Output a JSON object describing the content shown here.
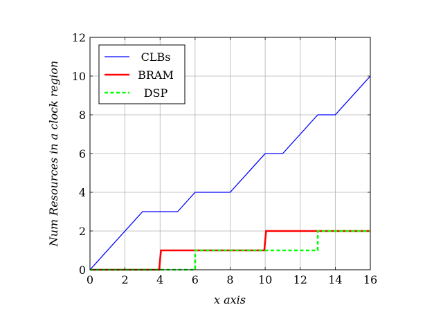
{
  "chart_data": {
    "type": "line",
    "title": "",
    "xlabel": "x axis",
    "ylabel": "Num Resources in a clock region",
    "xlim": [
      0,
      16
    ],
    "ylim": [
      0,
      12
    ],
    "xticks": [
      0,
      2,
      4,
      6,
      8,
      10,
      12,
      14,
      16
    ],
    "yticks": [
      0,
      2,
      4,
      6,
      8,
      10,
      12
    ],
    "grid": true,
    "legend_position": "top-left",
    "series": [
      {
        "name": "CLBs",
        "color": "#0000ff",
        "style": "solid",
        "x": [
          0,
          3,
          5,
          6,
          8,
          10,
          11,
          13,
          14,
          16
        ],
        "y": [
          0,
          3,
          3,
          4,
          4,
          6,
          6,
          8,
          8,
          10
        ]
      },
      {
        "name": "BRAM",
        "color": "#ff0000",
        "style": "solid",
        "x": [
          0,
          3.95,
          4.05,
          9.95,
          10.05,
          16
        ],
        "y": [
          0,
          0,
          1,
          1,
          2,
          2
        ]
      },
      {
        "name": "DSP",
        "color": "#00ff00",
        "style": "dashed",
        "x": [
          0,
          6,
          6,
          13,
          13,
          16
        ],
        "y": [
          0,
          0,
          1,
          1,
          2,
          2
        ]
      }
    ]
  }
}
